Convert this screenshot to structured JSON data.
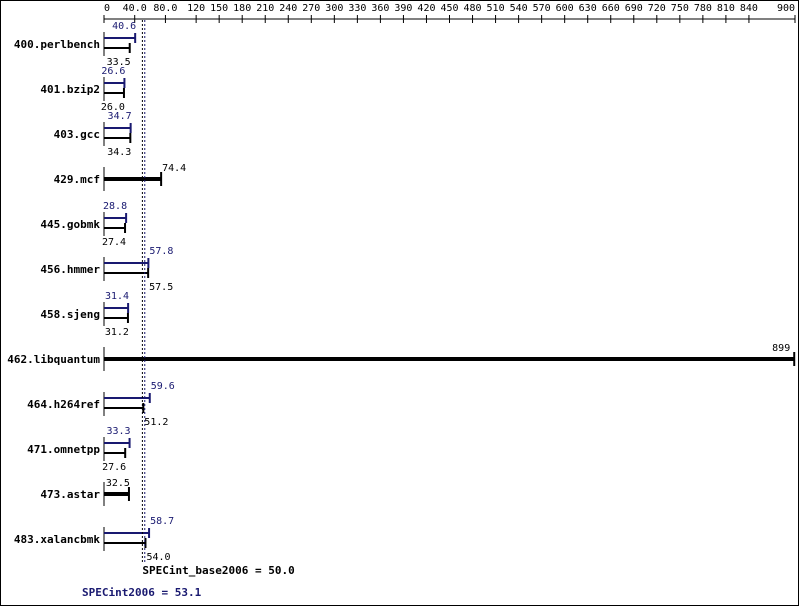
{
  "chart_data": {
    "type": "bar",
    "orientation": "horizontal",
    "title": "",
    "xlabel": "",
    "ylabel": "",
    "xlim": [
      0,
      900
    ],
    "x_ticks": [
      0,
      40,
      80,
      120,
      150,
      180,
      210,
      240,
      270,
      300,
      330,
      360,
      390,
      420,
      450,
      480,
      510,
      540,
      570,
      600,
      630,
      660,
      690,
      720,
      750,
      780,
      810,
      840,
      900
    ],
    "x_tick_labels": [
      "0",
      "40.0",
      "80.0",
      "120",
      "150",
      "180",
      "210",
      "240",
      "270",
      "300",
      "330",
      "360",
      "390",
      "420",
      "450",
      "480",
      "510",
      "540",
      "570",
      "600",
      "630",
      "660",
      "690",
      "720",
      "750",
      "780",
      "810",
      "840",
      "900"
    ],
    "categories": [
      "400.perlbench",
      "401.bzip2",
      "403.gcc",
      "429.mcf",
      "445.gobmk",
      "456.hmmer",
      "458.sjeng",
      "462.libquantum",
      "464.h264ref",
      "471.omnetpp",
      "473.astar",
      "483.xalancbmk"
    ],
    "series": [
      {
        "key": "peak",
        "color": "#191970",
        "values": [
          40.6,
          26.6,
          34.7,
          null,
          28.8,
          57.8,
          31.4,
          null,
          59.6,
          33.3,
          null,
          58.7
        ],
        "value_labels": [
          "40.6",
          "26.6",
          "34.7",
          null,
          "28.8",
          "57.8",
          "31.4",
          null,
          "59.6",
          "33.3",
          null,
          "58.7"
        ]
      },
      {
        "key": "base",
        "color": "#000000",
        "values": [
          33.5,
          26.0,
          34.3,
          74.4,
          27.4,
          57.5,
          31.2,
          899,
          51.2,
          27.6,
          32.5,
          54.0
        ],
        "value_labels": [
          "33.5",
          "26.0",
          "34.3",
          "74.4",
          "27.4",
          "57.5",
          "31.2",
          "899",
          "51.2",
          "27.6",
          "32.5",
          "54.0"
        ]
      }
    ],
    "reference_lines": [
      {
        "key": "base",
        "value": 50.0,
        "label": "SPECint_base2006 = 50.0",
        "color": "#000000"
      },
      {
        "key": "peak",
        "value": 53.1,
        "label": "SPECint2006 = 53.1",
        "color": "#191970"
      }
    ],
    "grid": false,
    "legend": "none"
  }
}
